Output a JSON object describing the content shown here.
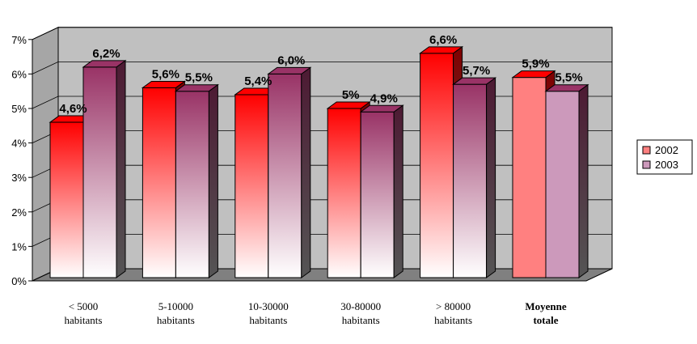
{
  "chart_data": {
    "type": "bar",
    "categories": [
      [
        "< 5000",
        "habitants"
      ],
      [
        "5-10000",
        "habitants"
      ],
      [
        "10-30000",
        "habitants"
      ],
      [
        "30-80000",
        "habitants"
      ],
      [
        "> 80000",
        "habitants"
      ],
      [
        "Moyenne",
        "totale"
      ]
    ],
    "bold_category": 5,
    "series": [
      {
        "name": "2002",
        "values": [
          4.6,
          5.6,
          5.4,
          5.0,
          6.6,
          5.9
        ],
        "labels": [
          "4,6%",
          "5,6%",
          "5,4%",
          "5%",
          "6,6%",
          "5,9%"
        ],
        "colors": {
          "top": "#ff0000",
          "bottom": "#ffffff",
          "flat": "#ff8080",
          "side": "#800000"
        }
      },
      {
        "name": "2003",
        "values": [
          6.2,
          5.5,
          6.0,
          4.9,
          5.7,
          5.5
        ],
        "labels": [
          "6,2%",
          "5,5%",
          "6,0%",
          "4,9%",
          "5,7%",
          "5,5%"
        ],
        "colors": {
          "top": "#993366",
          "bottom": "#ffffff",
          "flat": "#cc99bb",
          "side": "#4d1a33"
        }
      }
    ],
    "ylim": [
      0,
      7
    ],
    "yticks": [
      "0%",
      "1%",
      "2%",
      "3%",
      "4%",
      "5%",
      "6%",
      "7%"
    ],
    "grid": true,
    "legend_position": "right",
    "wall_color": "#c0c0c0",
    "floor_color": "#808080"
  }
}
